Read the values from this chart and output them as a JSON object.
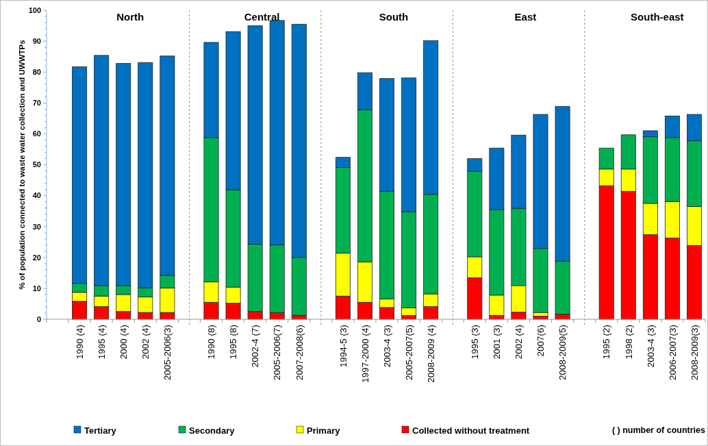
{
  "chart_data": {
    "type": "bar",
    "stacked": true,
    "ylabel": "% of population connected to waste water collection and UWWTPs",
    "categories": [
      null,
      "1990 (4)",
      "1995 (4)",
      "2000 (4)",
      "2002 (4)",
      "2005-2006(3)",
      null,
      "1990 (8)",
      "1995 (8)",
      "2002-4 (7)",
      "2005-2006(7)",
      "2007-2008(6)",
      null,
      "1994-5 (3)",
      "1997-2000 (4)",
      "2003-4 (3)",
      "2005-2007(5)",
      "2008-2009 (4)",
      null,
      "1995 (3)",
      "2001 (3)",
      "2002 (4)",
      "2007(6)",
      "2008-2009(5)",
      null,
      "1995 (2)",
      "1998 (2)",
      "2003-4 (3)",
      "2006-2007(3)",
      "2008-2009(3)"
    ],
    "series": [
      {
        "name": "Collected without treatment",
        "color": "#ff0000",
        "values": [
          null,
          5.8,
          4.1,
          2.5,
          2.2,
          2.2,
          null,
          5.5,
          5.2,
          2.5,
          2.1,
          1.3,
          null,
          7.5,
          5.5,
          3.8,
          1.2,
          4.1,
          null,
          13.4,
          1.2,
          2.3,
          1.0,
          1.6,
          null,
          43.2,
          41.4,
          27.4,
          26.3,
          23.9
        ]
      },
      {
        "name": "Primary",
        "color": "#ffff00",
        "values": [
          null,
          2.9,
          3.4,
          5.5,
          5.0,
          7.9,
          null,
          6.6,
          5.2,
          0,
          0,
          0,
          null,
          13.9,
          13.0,
          2.8,
          2.5,
          4.1,
          null,
          6.8,
          6.6,
          8.6,
          1.2,
          0,
          null,
          5.4,
          7.2,
          10.1,
          11.8,
          12.6
        ]
      },
      {
        "name": "Secondary",
        "color": "#00b050",
        "values": [
          null,
          2.9,
          3.4,
          2.9,
          3.0,
          4.1,
          null,
          46.7,
          31.5,
          21.8,
          22.0,
          18.7,
          null,
          27.7,
          49.3,
          34.8,
          31.1,
          32.2,
          null,
          27.7,
          27.7,
          25.0,
          20.7,
          17.2,
          null,
          6.8,
          11.1,
          21.6,
          20.7,
          21.3
        ]
      },
      {
        "name": "Tertiary",
        "color": "#0070c0",
        "values": [
          null,
          70.1,
          74.5,
          71.9,
          72.9,
          71.0,
          null,
          30.8,
          51.2,
          70.7,
          72.6,
          75.5,
          null,
          3.3,
          12.0,
          36.5,
          43.3,
          49.8,
          null,
          4.1,
          19.9,
          23.7,
          43.4,
          50.1,
          null,
          0,
          0,
          1.9,
          7.0,
          8.5
        ]
      }
    ],
    "ylim": [
      0,
      100
    ],
    "yticks": [
      0,
      {
        "value": 2,
        "label": null
      },
      {
        "value": 4,
        "label": null
      },
      {
        "value": 6,
        "label": null
      },
      {
        "value": 8,
        "label": null
      },
      10,
      {
        "value": 12,
        "label": null
      },
      {
        "value": 14,
        "label": null
      },
      {
        "value": 16,
        "label": null
      },
      {
        "value": 18,
        "label": null
      },
      20,
      {
        "value": 22,
        "label": null
      },
      {
        "value": 24,
        "label": null
      },
      {
        "value": 26,
        "label": null
      },
      {
        "value": 28,
        "label": null
      },
      30,
      {
        "value": 32,
        "label": null
      },
      {
        "value": 34,
        "label": null
      },
      {
        "value": 36,
        "label": null
      },
      {
        "value": 38,
        "label": null
      },
      40,
      {
        "value": 42,
        "label": null
      },
      {
        "value": 44,
        "label": null
      },
      {
        "value": 46,
        "label": null
      },
      {
        "value": 48,
        "label": null
      },
      50,
      {
        "value": 52,
        "label": null
      },
      {
        "value": 54,
        "label": null
      },
      {
        "value": 56,
        "label": null
      },
      {
        "value": 58,
        "label": null
      },
      60,
      {
        "value": 62,
        "label": null
      },
      {
        "value": 64,
        "label": null
      },
      {
        "value": 66,
        "label": null
      },
      {
        "value": 68,
        "label": null
      },
      70,
      {
        "value": 72,
        "label": null
      },
      {
        "value": 74,
        "label": null
      },
      {
        "value": 76,
        "label": null
      },
      {
        "value": 78,
        "label": null
      },
      80,
      {
        "value": 82,
        "label": null
      },
      {
        "value": 84,
        "label": null
      },
      {
        "value": 86,
        "label": null
      },
      {
        "value": 88,
        "label": null
      },
      90,
      {
        "value": 92,
        "label": null
      },
      {
        "value": 94,
        "label": null
      },
      {
        "value": 96,
        "label": null
      },
      {
        "value": 98,
        "label": null
      },
      100
    ],
    "legend": "bottom",
    "annotations": [
      "North",
      "Central",
      "South",
      "East",
      "South-east",
      "( ) number of countries"
    ]
  }
}
